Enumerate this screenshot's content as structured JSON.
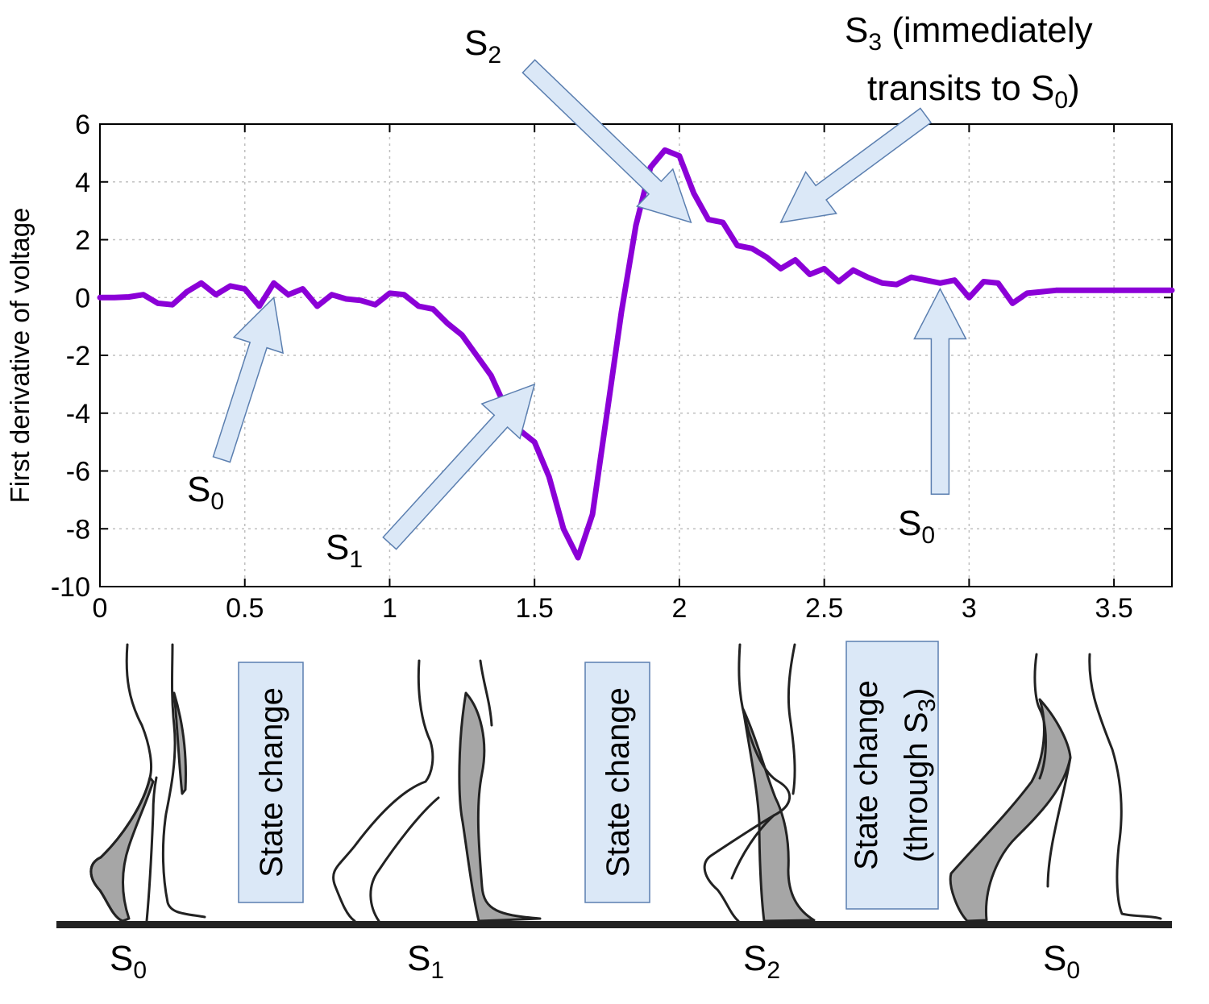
{
  "chart_data": {
    "type": "line",
    "title": "",
    "xlabel": "",
    "ylabel": "First derivative of voltage",
    "xlim": [
      0,
      3.7
    ],
    "ylim": [
      -10,
      6
    ],
    "x_ticks": [
      "0",
      "0.5",
      "1",
      "1.5",
      "2",
      "2.5",
      "3",
      "3.5"
    ],
    "y_ticks": [
      "6",
      "4",
      "2",
      "0",
      "-2",
      "-4",
      "-6",
      "-8",
      "-10"
    ],
    "grid": true,
    "line_color": "#8b00d7",
    "series": [
      {
        "name": "",
        "x": [
          0,
          0.05,
          0.1,
          0.15,
          0.2,
          0.25,
          0.3,
          0.35,
          0.4,
          0.45,
          0.5,
          0.55,
          0.6,
          0.65,
          0.7,
          0.75,
          0.8,
          0.85,
          0.9,
          0.95,
          1.0,
          1.05,
          1.1,
          1.15,
          1.2,
          1.25,
          1.3,
          1.35,
          1.4,
          1.45,
          1.5,
          1.55,
          1.6,
          1.65,
          1.7,
          1.75,
          1.8,
          1.85,
          1.9,
          1.95,
          2.0,
          2.05,
          2.1,
          2.15,
          2.2,
          2.25,
          2.3,
          2.35,
          2.4,
          2.45,
          2.5,
          2.55,
          2.6,
          2.65,
          2.7,
          2.75,
          2.8,
          2.85,
          2.9,
          2.95,
          3.0,
          3.05,
          3.1,
          3.15,
          3.2,
          3.25,
          3.3,
          3.35,
          3.4,
          3.45,
          3.5,
          3.55,
          3.6,
          3.65,
          3.7
        ],
        "values": [
          0.0,
          0.0,
          0.02,
          0.1,
          -0.2,
          -0.25,
          0.2,
          0.5,
          0.1,
          0.4,
          0.3,
          -0.3,
          0.5,
          0.1,
          0.3,
          -0.3,
          0.1,
          -0.05,
          -0.1,
          -0.25,
          0.15,
          0.1,
          -0.3,
          -0.4,
          -0.9,
          -1.3,
          -2.0,
          -2.7,
          -3.8,
          -4.6,
          -5.0,
          -6.2,
          -8.0,
          -9.0,
          -7.5,
          -4.0,
          -0.5,
          2.5,
          4.5,
          5.1,
          4.9,
          3.6,
          2.7,
          2.6,
          1.8,
          1.7,
          1.4,
          1.0,
          1.3,
          0.8,
          1.0,
          0.55,
          0.95,
          0.7,
          0.5,
          0.45,
          0.7,
          0.6,
          0.5,
          0.6,
          0.0,
          0.55,
          0.5,
          -0.2,
          0.15,
          0.2,
          0.25,
          0.25,
          0.25,
          0.25,
          0.25,
          0.25,
          0.25,
          0.25,
          0.25
        ]
      }
    ],
    "annotations": [
      {
        "base": "S",
        "sub": "0",
        "label_pos": [
          0.4,
          -6.9
        ],
        "tip": [
          0.6,
          0.0
        ],
        "tail": [
          0.42,
          -5.6
        ]
      },
      {
        "base": "S",
        "sub": "1",
        "label_pos": [
          0.87,
          -9.0
        ],
        "tip": [
          1.5,
          -3.0
        ],
        "tail": [
          1.0,
          -8.5
        ]
      },
      {
        "base": "S",
        "sub": "2",
        "label_pos": [
          1.38,
          8.6
        ],
        "tip": [
          2.04,
          2.6
        ],
        "tail": [
          1.48,
          8.0
        ]
      },
      {
        "base": "S",
        "sub": "3",
        "suffix": " (immediately",
        "line2": "transits to S",
        "line2_sub": "0",
        "line2_suffix": ")",
        "label_pos": [
          2.6,
          9.0
        ],
        "tip": [
          2.35,
          2.6
        ],
        "tail": [
          2.85,
          6.3
        ]
      },
      {
        "base": "S",
        "sub": "0",
        "label_pos": [
          2.75,
          -8.2
        ],
        "tip": [
          2.9,
          0.3
        ],
        "tail": [
          2.9,
          -6.8
        ]
      }
    ]
  },
  "states": {
    "boxes": [
      {
        "text": "State change"
      },
      {
        "text": "State change"
      },
      {
        "line1": "State change",
        "line2_pre": "(through S",
        "line2_sub": "3",
        "line2_post": ")"
      }
    ],
    "labels": [
      {
        "base": "S",
        "sub": "0"
      },
      {
        "base": "S",
        "sub": "1"
      },
      {
        "base": "S",
        "sub": "2"
      },
      {
        "base": "S",
        "sub": "0"
      }
    ]
  },
  "colors": {
    "line": "#8b00d7",
    "callout_fill": "#dbe8f7",
    "callout_stroke": "#5b7fb0",
    "leg_shade": "#a6a6a6",
    "ground": "#222222"
  }
}
